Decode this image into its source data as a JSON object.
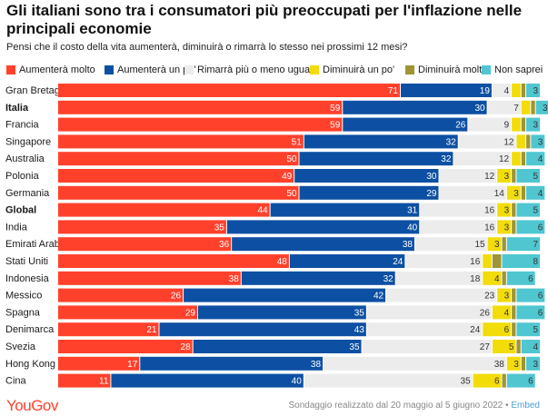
{
  "title": "Gli italiani sono tra i consumatori più preoccupati per l'inflazione nelle principali economie",
  "subtitle": "Pensi che il costo della vita aumenterà, diminuirà o rimarrà lo stesso nei prossimi 12 mesi?",
  "footer": {
    "logo": "YouGov",
    "source": "Sondaggio realizzato dal 20 maggio al 5 giugno 2022",
    "separator": " • ",
    "embed": "Embed"
  },
  "colors": {
    "aumentera_molto": "#ff412c",
    "aumentera_un_po": "#0d50a3",
    "rimarra": "#ececec",
    "diminuira_un_po": "#f2dc0a",
    "diminuira_molto": "#9f9534",
    "non_saprei": "#4fc6d0"
  },
  "chart_data": {
    "type": "bar",
    "orientation": "horizontal",
    "stacked": true,
    "xlim": [
      0,
      100
    ],
    "legend_position": "top",
    "categories": [
      "Gran Bretagna",
      "Italia",
      "Francia",
      "Singapore",
      "Australia",
      "Polonia",
      "Germania",
      "Global",
      "India",
      "Emirati Arabi Uniti",
      "Stati Uniti",
      "Indonesia",
      "Messico",
      "Spagna",
      "Denimarca",
      "Svezia",
      "Hong Kong",
      "Cina"
    ],
    "bold_categories": [
      "Italia",
      "Global"
    ],
    "series": [
      {
        "name": "Aumenterà molto",
        "color": "#ff412c",
        "label_color": "#ffffff",
        "values": [
          71,
          59,
          59,
          51,
          50,
          49,
          50,
          44,
          35,
          36,
          48,
          38,
          26,
          29,
          21,
          28,
          17,
          11
        ]
      },
      {
        "name": "Aumenterà un po'",
        "color": "#0d50a3",
        "label_color": "#ffffff",
        "values": [
          19,
          30,
          26,
          32,
          32,
          30,
          29,
          31,
          40,
          38,
          24,
          32,
          42,
          35,
          43,
          35,
          38,
          40
        ]
      },
      {
        "name": "Rimarrà più o meno uguale",
        "color": "#ececec",
        "label_color": "#333333",
        "values": [
          4,
          7,
          9,
          12,
          12,
          12,
          14,
          16,
          16,
          15,
          16,
          18,
          23,
          26,
          24,
          27,
          38,
          35
        ]
      },
      {
        "name": "Diminuirà un po'",
        "color": "#f2dc0a",
        "label_color": "#333333",
        "values": [
          2,
          2,
          2,
          2,
          2,
          3,
          3,
          3,
          3,
          3,
          2,
          4,
          3,
          4,
          6,
          5,
          3,
          6
        ]
      },
      {
        "name": "Diminuirà molto",
        "color": "#9f9534",
        "label_color": "#333333",
        "values": [
          1,
          1,
          1,
          1,
          1,
          1,
          1,
          1,
          1,
          1,
          2,
          1,
          1,
          1,
          1,
          1,
          1,
          1
        ]
      },
      {
        "name": "Non saprei",
        "color": "#4fc6d0",
        "label_color": "#333333",
        "values": [
          3,
          3,
          3,
          3,
          4,
          5,
          4,
          5,
          6,
          7,
          8,
          6,
          6,
          6,
          5,
          4,
          3,
          6
        ]
      }
    ]
  }
}
